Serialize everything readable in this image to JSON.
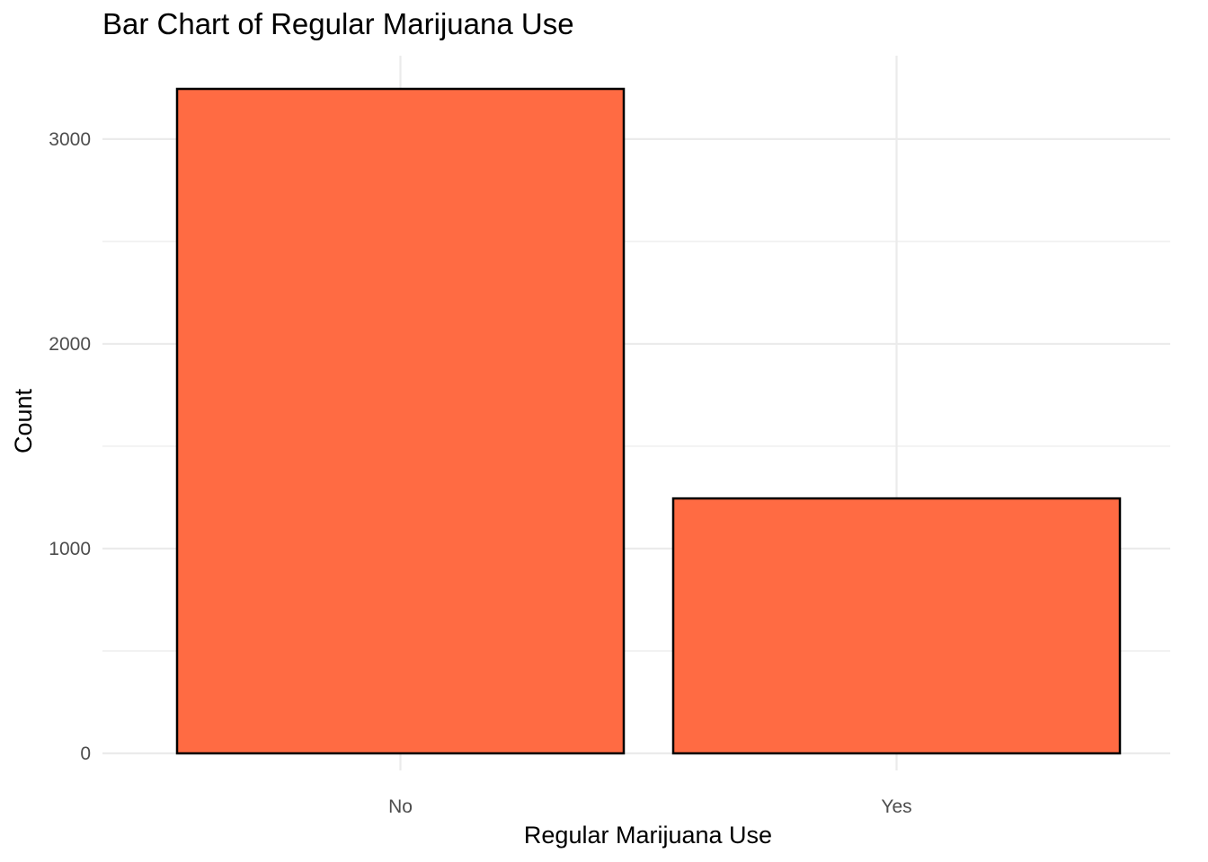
{
  "chart_data": {
    "type": "bar",
    "title": "Bar Chart of Regular Marijuana Use",
    "xlabel": "Regular Marijuana Use",
    "ylabel": "Count",
    "categories": [
      "No",
      "Yes"
    ],
    "values": [
      3245,
      1245
    ],
    "ylim": [
      0,
      3245
    ],
    "yticks": [
      0,
      1000,
      2000,
      3000
    ],
    "grid": true,
    "bar_color": "#FF6B43",
    "bar_outline_color": "#000000"
  }
}
